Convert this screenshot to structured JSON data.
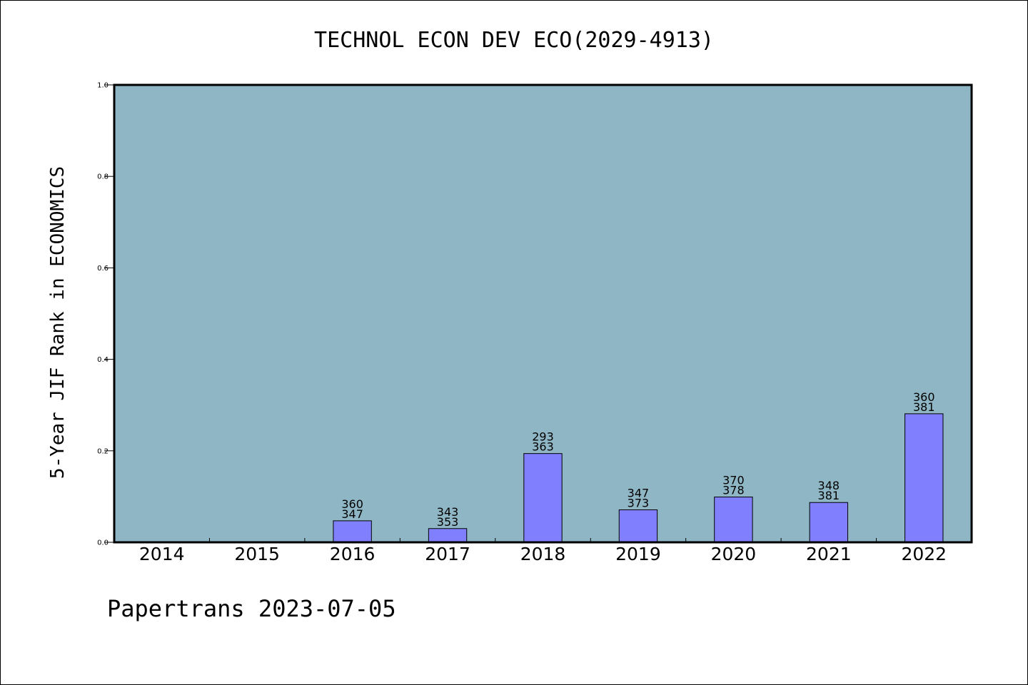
{
  "chart_data": {
    "type": "bar",
    "title": "TECHNOL ECON DEV ECO(2029-4913)",
    "xlabel": "",
    "ylabel": "5-Year JIF Rank in ECONOMICS",
    "ylim": [
      0.0,
      1.0
    ],
    "yticks": [
      "0.0",
      "0.2",
      "0.4",
      "0.6",
      "0.8",
      "1.0"
    ],
    "grid": false,
    "categories": [
      "2014",
      "2015",
      "2016",
      "2017",
      "2018",
      "2019",
      "2020",
      "2021",
      "2022"
    ],
    "values": [
      null,
      null,
      0.047,
      0.03,
      0.194,
      0.071,
      0.099,
      0.087,
      0.281
    ],
    "bar_labels": [
      null,
      null,
      [
        "360",
        "347"
      ],
      [
        "343",
        "353"
      ],
      [
        "293",
        "363"
      ],
      [
        "347",
        "373"
      ],
      [
        "370",
        "378"
      ],
      [
        "348",
        "381"
      ],
      [
        "360",
        "381"
      ]
    ],
    "colors": {
      "plot_background": "#8fb6c4",
      "bar_fill": "#8080ff",
      "bar_stroke": "#000000"
    }
  },
  "footer": {
    "text": "Papertrans 2023-07-05"
  }
}
